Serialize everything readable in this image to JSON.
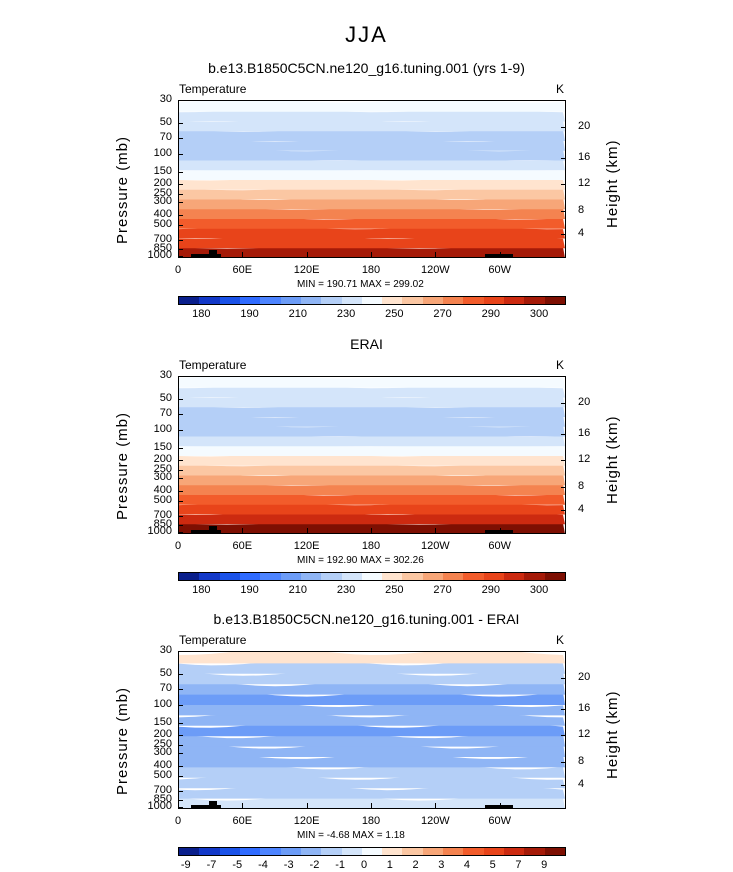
{
  "figure": {
    "title": "JJA"
  },
  "colors": {
    "temp_palette": [
      "#0a1f8c",
      "#1238c8",
      "#1a52e8",
      "#2f6bff",
      "#4d84ff",
      "#6c9cf7",
      "#8fb5f5",
      "#b4cff7",
      "#d4e5fa",
      "#f5fbff",
      "#ffe4cf",
      "#fbc7a3",
      "#f7a678",
      "#f48350",
      "#f25c2b",
      "#e8441a",
      "#cc2a10",
      "#a51a08",
      "#7d0f02"
    ],
    "diff_palette": [
      "#0a1f8c",
      "#1238c8",
      "#1a52e8",
      "#2f6bff",
      "#4d84ff",
      "#6c9cf7",
      "#8fb5f5",
      "#b4cff7",
      "#d4e5fa",
      "#f5fbff",
      "#ffe4cf",
      "#fbc7a3",
      "#f7a678",
      "#f48350",
      "#f25c2b",
      "#e8441a",
      "#cc2a10",
      "#a51a08",
      "#7d0f02"
    ]
  },
  "chart_data": [
    {
      "type": "heatmap",
      "title": "b.e13.B1850C5CN.ne120_g16.tuning.001 (yrs 1-9)",
      "field_label": "Temperature",
      "units": "K",
      "ylabel": "Pressure  (mb)",
      "ylabel_right": "Height  (km)",
      "y_ticks": [
        "30",
        "50",
        "70",
        "100",
        "150",
        "200",
        "250",
        "300",
        "400",
        "500",
        "700",
        "850",
        "1000"
      ],
      "y_ticks_right": [
        "20",
        "16",
        "12",
        "8",
        "4"
      ],
      "x_ticks": [
        "0",
        "60E",
        "120E",
        "180",
        "120W",
        "60W"
      ],
      "stats": {
        "min_label": "MIN =",
        "min": "190.71",
        "max_label": "MAX =",
        "max": "299.02"
      },
      "colorbar_ticks": [
        "180",
        "190",
        "210",
        "230",
        "250",
        "270",
        "290",
        "300"
      ],
      "levels_bottom_to_top": [
        299,
        290,
        282,
        274,
        265,
        255,
        244,
        232,
        221,
        213,
        208,
        204,
        205,
        212,
        217,
        222
      ]
    },
    {
      "type": "heatmap",
      "title": "ERAI",
      "field_label": "Temperature",
      "units": "K",
      "ylabel": "Pressure  (mb)",
      "ylabel_right": "Height  (km)",
      "y_ticks": [
        "30",
        "50",
        "70",
        "100",
        "150",
        "200",
        "250",
        "300",
        "400",
        "500",
        "700",
        "850",
        "1000"
      ],
      "y_ticks_right": [
        "20",
        "16",
        "12",
        "8",
        "4"
      ],
      "x_ticks": [
        "0",
        "60E",
        "120E",
        "180",
        "120W",
        "60W"
      ],
      "stats": {
        "min_label": "MIN =",
        "min": "192.90",
        "max_label": "MAX =",
        "max": "302.26"
      },
      "colorbar_ticks": [
        "180",
        "190",
        "210",
        "230",
        "250",
        "270",
        "290",
        "300"
      ],
      "levels_bottom_to_top": [
        302,
        292,
        284,
        275,
        266,
        256,
        245,
        233,
        222,
        214,
        209,
        205,
        206,
        213,
        218,
        223
      ]
    },
    {
      "type": "heatmap",
      "title": "b.e13.B1850C5CN.ne120_g16.tuning.001 - ERAI",
      "field_label": "Temperature",
      "units": "K",
      "ylabel": "Pressure  (mb)",
      "ylabel_right": "Height  (km)",
      "y_ticks": [
        "30",
        "50",
        "70",
        "100",
        "150",
        "200",
        "250",
        "300",
        "400",
        "500",
        "700",
        "850",
        "1000"
      ],
      "y_ticks_right": [
        "20",
        "16",
        "12",
        "8",
        "4"
      ],
      "x_ticks": [
        "0",
        "60E",
        "120E",
        "180",
        "120W",
        "60W"
      ],
      "stats": {
        "min_label": "MIN =",
        "min": "-4.68",
        "max_label": "MAX =",
        "max": "1.18"
      },
      "colorbar_ticks": [
        "-9",
        "-7",
        "-5",
        "-4",
        "-3",
        "-2",
        "-1",
        "0",
        "1",
        "2",
        "3",
        "4",
        "5",
        "7",
        "9"
      ],
      "levels_bottom_to_top": [
        -1,
        -2,
        -2,
        -2,
        -3,
        -3,
        -3,
        -4,
        -3,
        -3,
        -4,
        -3,
        -2,
        -2,
        1
      ]
    }
  ]
}
